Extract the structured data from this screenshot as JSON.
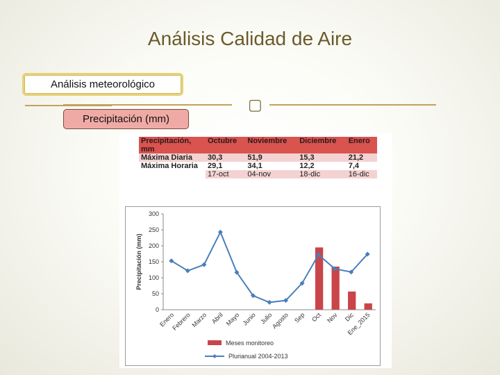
{
  "slide": {
    "title": "Análisis Calidad de Aire",
    "box1_label": "Análisis meteorológico",
    "box2_label": "Precipitación (mm)"
  },
  "table": {
    "header": [
      "Precipitación, mm",
      "Octubre",
      "Noviembre",
      "Diciembre",
      "Enero"
    ],
    "rows": [
      {
        "label": "Máxima Diaria",
        "values": [
          "30,3",
          "51,9",
          "15,3",
          "21,2"
        ]
      },
      {
        "label": "Máxima Horaria",
        "values": [
          "29,1",
          "34,1",
          "12,2",
          "7,4"
        ]
      },
      {
        "label": "",
        "values": [
          "17-oct",
          "04-nov",
          "18-dic",
          "16-dic"
        ]
      }
    ]
  },
  "chart_data": {
    "type": "bar",
    "categories": [
      "Enero",
      "Febrero",
      "Marzo",
      "Abril",
      "Mayo",
      "Junio",
      "Julio",
      "Agosto",
      "Sep",
      "Oct",
      "Nov",
      "Dic",
      "Ene_2015"
    ],
    "series": [
      {
        "name": "Meses monitoreo",
        "type": "bar",
        "color": "#c9454a",
        "values": [
          null,
          null,
          null,
          null,
          null,
          null,
          null,
          null,
          null,
          195,
          135,
          57,
          20
        ]
      },
      {
        "name": "Plurianual 2004-2013",
        "type": "line",
        "color": "#4a7ebb",
        "values": [
          153,
          122,
          141,
          243,
          117,
          44,
          23,
          29,
          83,
          172,
          128,
          118,
          174
        ]
      }
    ],
    "xlabel": "",
    "ylabel": "Precipitación (mm)",
    "ylim": [
      0,
      300
    ],
    "yticks": [
      "0",
      "50",
      "100",
      "150",
      "200",
      "250",
      "300"
    ],
    "grid": false,
    "legend_position": "bottom"
  }
}
